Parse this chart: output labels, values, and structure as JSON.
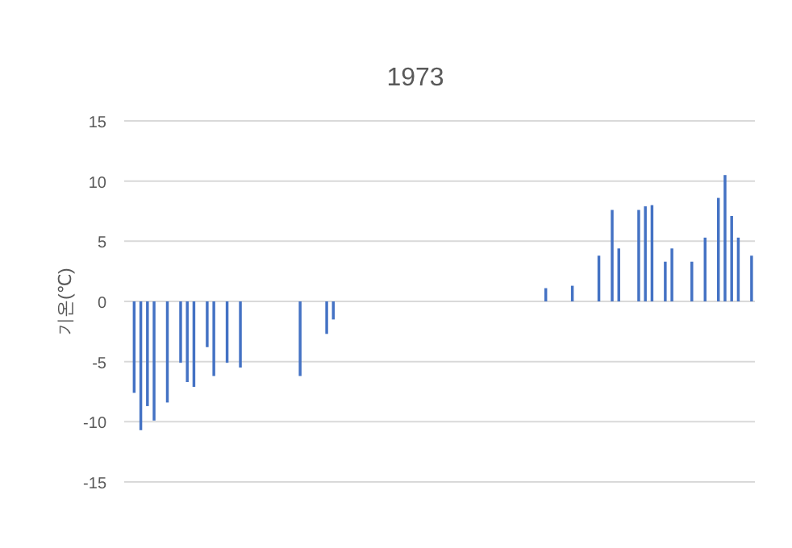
{
  "chart_data": {
    "type": "bar",
    "title": "1973",
    "ylabel": "기온(℃)",
    "categories": [
      null,
      null,
      null,
      null,
      null,
      null,
      null,
      null,
      null,
      null,
      null,
      null,
      null,
      null,
      null,
      null,
      null,
      null,
      null,
      null,
      null,
      null,
      null,
      null,
      null,
      null,
      null,
      null,
      null,
      null,
      null,
      null,
      null,
      null,
      null,
      null,
      null,
      null,
      null,
      null,
      null,
      null,
      null,
      null,
      null,
      null,
      null,
      null,
      null,
      null,
      null,
      null,
      null,
      null,
      null,
      null,
      null,
      null,
      null,
      null,
      null,
      null,
      null,
      null,
      null,
      null,
      null,
      null,
      null,
      null,
      null,
      null,
      null,
      null,
      null,
      null,
      null,
      null,
      null,
      null,
      null,
      null,
      null,
      null,
      null,
      null,
      null,
      null,
      null,
      null,
      null,
      null,
      null,
      null,
      null
    ],
    "values": [
      null,
      -7.6,
      -10.7,
      -8.7,
      -9.9,
      null,
      -8.4,
      null,
      -5.1,
      -6.7,
      -7.1,
      null,
      -3.8,
      -6.2,
      null,
      -5.1,
      null,
      -5.5,
      null,
      null,
      null,
      null,
      null,
      null,
      null,
      null,
      -6.2,
      null,
      null,
      null,
      -2.7,
      -1.5,
      null,
      null,
      null,
      null,
      null,
      null,
      null,
      null,
      null,
      null,
      null,
      null,
      null,
      null,
      null,
      null,
      null,
      null,
      null,
      null,
      null,
      null,
      null,
      null,
      null,
      null,
      null,
      null,
      null,
      null,
      null,
      1.1,
      null,
      null,
      null,
      1.3,
      null,
      null,
      null,
      3.8,
      null,
      7.6,
      4.4,
      null,
      null,
      7.6,
      7.9,
      8.0,
      null,
      3.3,
      4.4,
      null,
      null,
      3.3,
      null,
      5.3,
      null,
      8.6,
      10.5,
      7.1,
      5.3,
      null,
      3.8
    ],
    "color": "#4472c4",
    "ylim": [
      -15,
      15
    ],
    "yticks": [
      -15,
      -10,
      -5,
      0,
      5,
      10,
      15
    ],
    "grid": "y"
  }
}
